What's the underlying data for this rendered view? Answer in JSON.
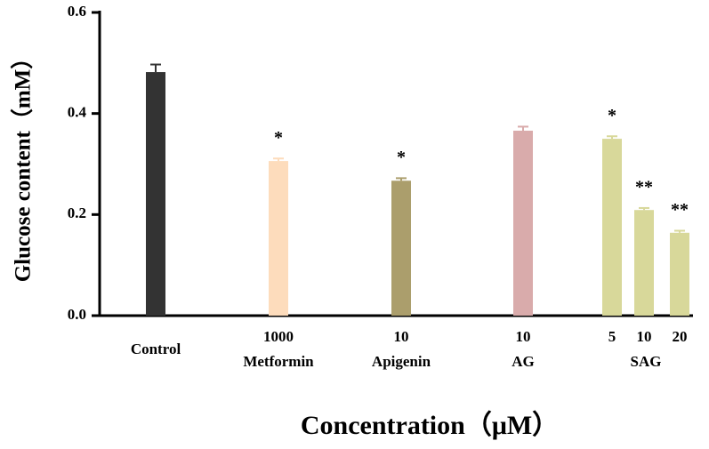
{
  "chart_data": {
    "type": "bar",
    "y_label": "Glucose content（mM）",
    "x_label": "Concentration（μM）",
    "categories": [
      "Control",
      "1000",
      "10",
      "10",
      "5",
      "10",
      "20"
    ],
    "category_groups": [
      null,
      "Metformin",
      "Apigenin",
      "AG",
      "SAG",
      "SAG",
      "SAG"
    ],
    "values": [
      0.482,
      0.306,
      0.267,
      0.366,
      0.35,
      0.209,
      0.164
    ],
    "errors": [
      0.015,
      0.005,
      0.005,
      0.008,
      0.005,
      0.004,
      0.004
    ],
    "colors": [
      "#333333",
      "#fddcbc",
      "#ab9e6c",
      "#d9abab",
      "#d8d89a",
      "#d8d89a",
      "#d8d89a"
    ],
    "significance": [
      null,
      "*",
      "*",
      null,
      "*",
      "**",
      "**"
    ],
    "ylim": [
      0,
      0.6
    ],
    "yticks": [
      {
        "value": 0,
        "label": "0.0"
      },
      0.2,
      0.4,
      0.6
    ]
  }
}
